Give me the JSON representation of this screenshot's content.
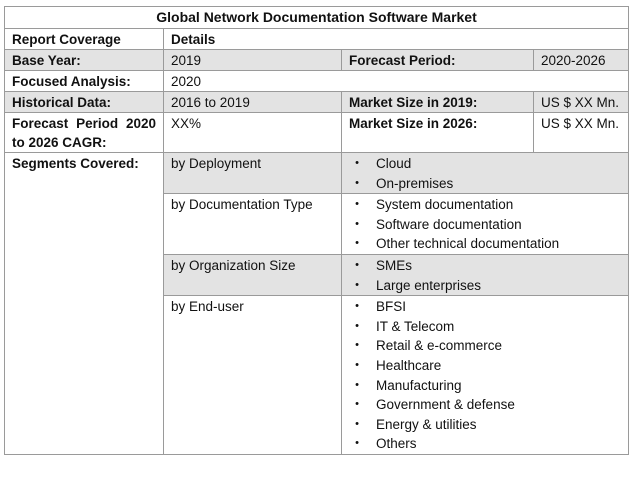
{
  "title": "Global Network Documentation Software Market",
  "header": {
    "col1": "Report Coverage",
    "col2": "Details"
  },
  "base_year": {
    "label": "Base Year:",
    "value": "2019"
  },
  "forecast_period": {
    "label": "Forecast Period:",
    "value": "2020-2026"
  },
  "focused_analysis": {
    "label": "Focused Analysis:",
    "value": "2020"
  },
  "historical_data": {
    "label": "Historical Data:",
    "value": "2016 to 2019"
  },
  "market_size_2019": {
    "label": "Market Size in 2019:",
    "value": "US $ XX Mn."
  },
  "cagr": {
    "label": "Forecast Period 2020 to 2026 CAGR:",
    "value": "XX%"
  },
  "market_size_2026": {
    "label": "Market Size in 2026:",
    "value": "US $ XX Mn."
  },
  "segments_label": "Segments Covered:",
  "bullet_char": "•",
  "segments": [
    {
      "name": "by Deployment",
      "items": [
        "Cloud",
        "On-premises"
      ]
    },
    {
      "name": "by Documentation Type",
      "items": [
        "System documentation",
        "Software documentation",
        "Other technical documentation"
      ]
    },
    {
      "name": "by Organization Size",
      "items": [
        "SMEs",
        "Large enterprises"
      ]
    },
    {
      "name": "by End-user",
      "items": [
        "BFSI",
        "IT & Telecom",
        "Retail & e-commerce",
        "Healthcare",
        "Manufacturing",
        "Government & defense",
        "Energy & utilities",
        "Others"
      ]
    }
  ],
  "colors": {
    "shaded_row": "#e3e3e3",
    "border": "#9a9a9a"
  }
}
